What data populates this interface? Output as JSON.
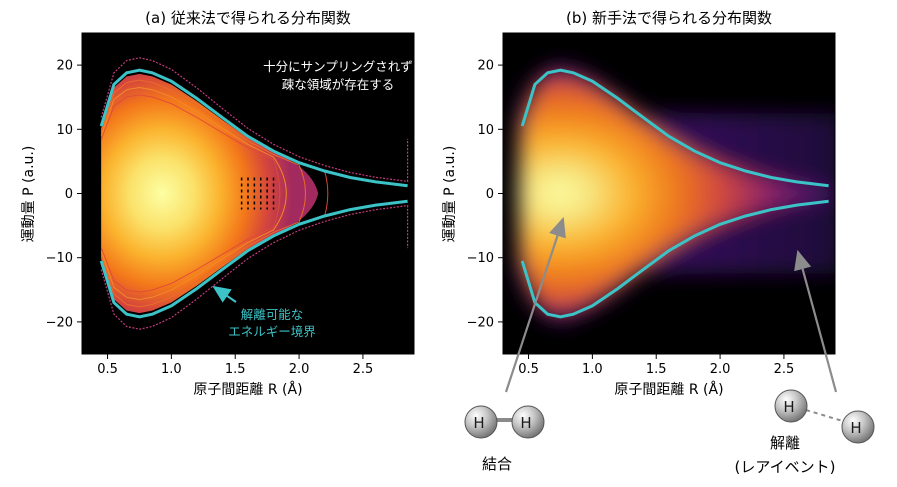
{
  "chart_data": [
    {
      "type": "heatmap",
      "title": "(a) 従来法で得られる分布関数",
      "xlabel": "原子間距離 R (Å)",
      "ylabel": "運動量 P (a.u.)",
      "xlim": [
        0.3,
        2.9
      ],
      "ylim": [
        -25,
        25
      ],
      "x_ticks": [
        "0.5",
        "1.0",
        "1.5",
        "2.0",
        "2.5"
      ],
      "y_ticks": [
        "20",
        "10",
        "0",
        "−10",
        "−20"
      ],
      "x_tick_values": [
        0.5,
        1.0,
        1.5,
        2.0,
        2.5
      ],
      "y_tick_values": [
        20,
        10,
        0,
        -10,
        -20
      ],
      "colormap": "inferno",
      "boundary_color": "#3cc3c7",
      "boundary_upper": {
        "R": [
          0.45,
          0.55,
          0.65,
          0.75,
          0.85,
          1.0,
          1.2,
          1.4,
          1.6,
          1.8,
          2.0,
          2.2,
          2.4,
          2.6,
          2.85
        ],
        "P": [
          10.5,
          17.0,
          18.8,
          19.2,
          18.8,
          17.5,
          14.8,
          11.8,
          8.9,
          6.6,
          4.8,
          3.5,
          2.5,
          1.8,
          1.2
        ]
      },
      "annotations": [
        "十分にサンプリングされず",
        "疎な領域が存在する",
        "解離可能な",
        "エネルギー境界"
      ]
    },
    {
      "type": "heatmap",
      "title": "(b) 新手法で得られる分布関数",
      "xlabel": "原子間距離 R (Å)",
      "ylabel": "運動量 P (a.u.)",
      "xlim": [
        0.3,
        2.9
      ],
      "ylim": [
        -25,
        25
      ],
      "x_ticks": [
        "0.5",
        "1.0",
        "1.5",
        "2.0",
        "2.5"
      ],
      "y_ticks": [
        "20",
        "10",
        "0",
        "−10",
        "−20"
      ],
      "x_tick_values": [
        0.5,
        1.0,
        1.5,
        2.0,
        2.5
      ],
      "y_tick_values": [
        20,
        10,
        0,
        -10,
        -20
      ],
      "colormap": "inferno",
      "boundary_color": "#3cc3c7",
      "boundary_upper": {
        "R": [
          0.45,
          0.55,
          0.65,
          0.75,
          0.85,
          1.0,
          1.2,
          1.4,
          1.6,
          1.8,
          2.0,
          2.2,
          2.4,
          2.6,
          2.85
        ],
        "P": [
          10.5,
          17.0,
          18.8,
          19.2,
          18.8,
          17.5,
          14.8,
          11.8,
          8.9,
          6.6,
          4.8,
          3.5,
          2.5,
          1.8,
          1.2
        ]
      }
    }
  ],
  "annotations_a": {
    "sparse_line1": "十分にサンプリングされず",
    "sparse_line2": "疎な領域が存在する",
    "boundary_line1": "解離可能な",
    "boundary_line2": "エネルギー境界"
  },
  "molecules": {
    "atom_label": "H",
    "bonded_caption": "結合",
    "dissociated_caption_line1": "解離",
    "dissociated_caption_line2": "(レアイベント)"
  }
}
